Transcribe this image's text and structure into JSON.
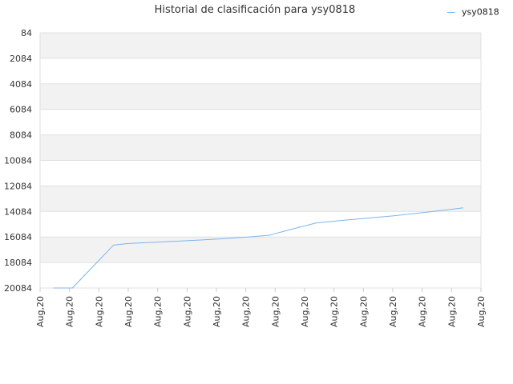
{
  "chart_data": {
    "type": "line",
    "title": "Historial de clasificación para ysy0818",
    "xlabel": "",
    "ylabel": "",
    "y_inverted": true,
    "ylim": [
      84,
      20084
    ],
    "yticks": [
      "84",
      "2084",
      "4084",
      "6084",
      "8084",
      "10084",
      "12084",
      "14084",
      "16084",
      "18084",
      "20084"
    ],
    "xtick_labels": [
      "Aug,20",
      "Aug,20",
      "Aug,20",
      "Aug,20",
      "Aug,20",
      "Aug,20",
      "Aug,20",
      "Aug,20",
      "Aug,20",
      "Aug,20",
      "Aug,20",
      "Aug,20",
      "Aug,20",
      "Aug,20",
      "Aug,20",
      "Aug,20"
    ],
    "grid": true,
    "legend_position": "top-right",
    "series": [
      {
        "name": "ysy0818",
        "color": "#7cb5ec",
        "points": [
          {
            "x": 0.45,
            "y": 20084
          },
          {
            "x": 1.1,
            "y": 20084
          },
          {
            "x": 2.5,
            "y": 16720
          },
          {
            "x": 3.0,
            "y": 16600
          },
          {
            "x": 4.0,
            "y": 16490
          },
          {
            "x": 5.0,
            "y": 16380
          },
          {
            "x": 6.0,
            "y": 16250
          },
          {
            "x": 7.0,
            "y": 16100
          },
          {
            "x": 7.8,
            "y": 15950
          },
          {
            "x": 8.6,
            "y": 15450
          },
          {
            "x": 9.4,
            "y": 14980
          },
          {
            "x": 10.2,
            "y": 14800
          },
          {
            "x": 11.0,
            "y": 14640
          },
          {
            "x": 12.0,
            "y": 14430
          },
          {
            "x": 13.0,
            "y": 14180
          },
          {
            "x": 14.0,
            "y": 13920
          },
          {
            "x": 14.4,
            "y": 13800
          }
        ]
      }
    ]
  }
}
